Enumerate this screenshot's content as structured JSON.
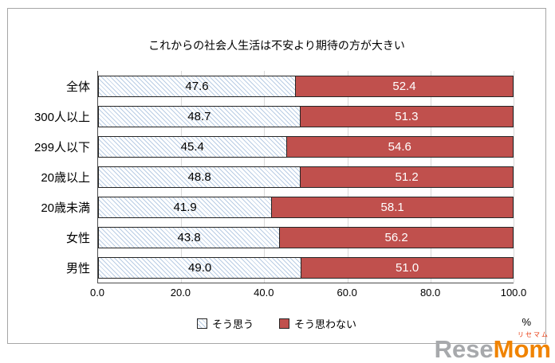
{
  "title": "これからの社会人生活は不安より期待の方が大きい",
  "chart_data": {
    "type": "bar",
    "orientation": "horizontal",
    "stacked": true,
    "grid": true,
    "legend_position": "bottom",
    "x_unit": "%",
    "xlim": [
      0,
      100
    ],
    "x_ticks": [
      "0.0",
      "20.0",
      "40.0",
      "60.0",
      "80.0",
      "100.0"
    ],
    "categories": [
      "全体",
      "300人以上",
      "299人以下",
      "20歳以上",
      "20歳未満",
      "女性",
      "男性"
    ],
    "series": [
      {
        "name": "そう思う",
        "values": [
          47.6,
          48.7,
          45.4,
          48.8,
          41.9,
          43.8,
          49.0
        ],
        "pattern": "diagonal-hatch",
        "pattern_color": "#b8cce4",
        "label_color": "#000000"
      },
      {
        "name": "そう思わない",
        "values": [
          52.4,
          51.3,
          54.6,
          51.2,
          58.1,
          56.2,
          51.0
        ],
        "color": "#c0504d",
        "label_color": "#ffffff"
      }
    ]
  },
  "watermark": {
    "text_gray": "Rese",
    "text_orange": "Mom",
    "small_text": "リセマム"
  }
}
